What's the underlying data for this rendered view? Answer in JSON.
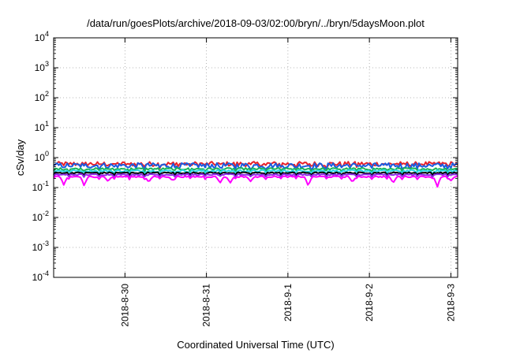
{
  "chart_data": {
    "type": "line",
    "title": "/data/run/goesPlots/archive/2018-09-03/02:00/bryn/../bryn/5daysMoon.plot",
    "xlabel": "Coordinated Universal Time (UTC)",
    "ylabel": "cSv/day",
    "y_scale": "log",
    "ylim": [
      0.0001,
      10000
    ],
    "y_ticks": [
      {
        "value": 0.0001,
        "base": "10",
        "exp": "-4"
      },
      {
        "value": 0.001,
        "base": "10",
        "exp": "-3"
      },
      {
        "value": 0.01,
        "base": "10",
        "exp": "-2"
      },
      {
        "value": 0.1,
        "base": "10",
        "exp": "-1"
      },
      {
        "value": 1,
        "base": "10",
        "exp": "0"
      },
      {
        "value": 10,
        "base": "10",
        "exp": "1"
      },
      {
        "value": 100,
        "base": "10",
        "exp": "2"
      },
      {
        "value": 1000,
        "base": "10",
        "exp": "3"
      },
      {
        "value": 10000,
        "base": "10",
        "exp": "4"
      }
    ],
    "xlim": [
      "2018-08-29 03:00",
      "2018-09-03 02:00"
    ],
    "x_ticks": [
      {
        "value": "2018-08-30 00:00",
        "label": "2018-8-30"
      },
      {
        "value": "2018-08-31 00:00",
        "label": "2018-8-31"
      },
      {
        "value": "2018-09-01 00:00",
        "label": "2018-9-1"
      },
      {
        "value": "2018-09-02 00:00",
        "label": "2018-9-2"
      },
      {
        "value": "2018-09-03 00:00",
        "label": "2018-9-3"
      }
    ],
    "grid": true,
    "series": [
      {
        "color": "#e8222a",
        "level": 0.62,
        "jitter": 0.18,
        "dips": []
      },
      {
        "color": "#1b5ce0",
        "level": 0.55,
        "jitter": 0.2,
        "dips": []
      },
      {
        "color": "#19b45a",
        "level": 0.42,
        "jitter": 0.08,
        "dips": []
      },
      {
        "color": "#28d7e6",
        "level": 0.36,
        "jitter": 0.08,
        "dips": []
      },
      {
        "color": "#000000",
        "level": 0.31,
        "jitter": 0.05,
        "dips": []
      },
      {
        "color": "#8a2be2",
        "level": 0.27,
        "jitter": 0.05,
        "dips": []
      },
      {
        "color": "#ff00ff",
        "level": 0.23,
        "jitter": 0.05,
        "dips": [
          {
            "at": "2018-08-29 06:00",
            "value": 0.12
          },
          {
            "at": "2018-08-29 12:00",
            "value": 0.11
          },
          {
            "at": "2018-08-29 19:00",
            "value": 0.16
          },
          {
            "at": "2018-08-30 07:00",
            "value": 0.15
          },
          {
            "at": "2018-08-30 14:00",
            "value": 0.17
          },
          {
            "at": "2018-08-31 04:00",
            "value": 0.14
          },
          {
            "at": "2018-08-31 07:00",
            "value": 0.14
          },
          {
            "at": "2018-08-31 13:00",
            "value": 0.16
          },
          {
            "at": "2018-09-01 06:00",
            "value": 0.11
          },
          {
            "at": "2018-09-01 19:00",
            "value": 0.15
          },
          {
            "at": "2018-09-02 07:00",
            "value": 0.14
          },
          {
            "at": "2018-09-02 20:00",
            "value": 0.1
          },
          {
            "at": "2018-09-03 00:00",
            "value": 0.17
          }
        ]
      }
    ]
  }
}
